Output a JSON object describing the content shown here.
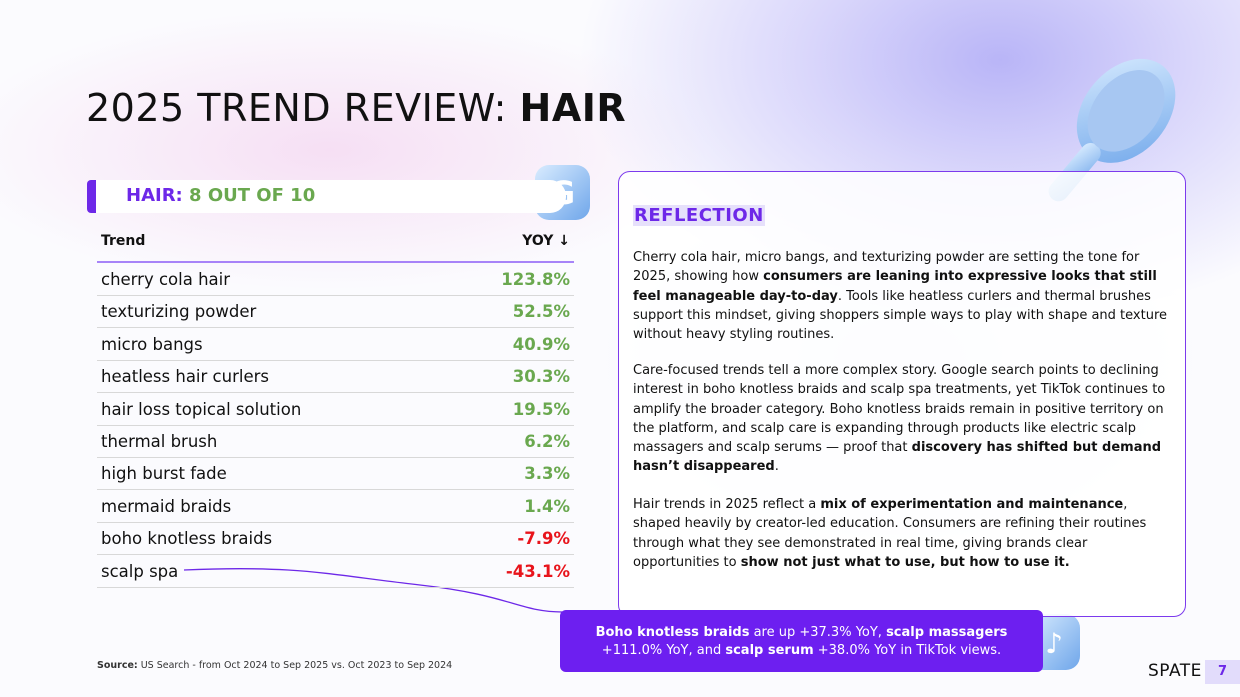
{
  "header": {
    "title": [
      {
        "text": "2025 TREND REVIEW: ",
        "bold": false
      },
      {
        "text": "HAIR",
        "bold": true
      }
    ]
  },
  "card": {
    "label": "HAIR:",
    "score": "8 OUT OF 10"
  },
  "table": {
    "columns": [
      "Trend",
      "YOY ↓"
    ],
    "rows": [
      [
        "cherry cola hair",
        "123.8%"
      ],
      [
        "texturizing powder",
        "52.5%"
      ],
      [
        "micro bangs",
        "40.9%"
      ],
      [
        "heatless hair curlers",
        "30.3%"
      ],
      [
        "hair loss topical solution",
        "19.5%"
      ],
      [
        "thermal brush",
        "6.2%"
      ],
      [
        "high burst fade",
        "3.3%"
      ],
      [
        "mermaid braids",
        "1.4%"
      ],
      [
        "boho knotless braids",
        "-7.9%"
      ],
      [
        "scalp spa",
        "-43.1%"
      ]
    ]
  },
  "reflection": {
    "heading": "REFLECTION",
    "paragraphs": [
      [
        {
          "text": "Cherry cola hair, micro bangs, and texturizing powder are setting the tone for 2025, showing how ",
          "bold": false
        },
        {
          "text": "consumers are leaning into expressive looks that still feel manageable day-to-day",
          "bold": true
        },
        {
          "text": ". Tools like heatless curlers and thermal brushes support this mindset, giving shoppers simple ways to play with shape and texture without heavy styling routines.",
          "bold": false
        }
      ],
      [
        {
          "text": "Care-focused trends tell a more complex story. Google search points to declining interest in boho knotless braids and scalp spa treatments, yet TikTok continues to amplify the broader category. Boho knotless braids remain in positive territory on the platform, and scalp care is expanding through products like electric scalp massagers and scalp serums — proof that ",
          "bold": false
        },
        {
          "text": "discovery has shifted but demand hasn’t disappeared",
          "bold": true
        },
        {
          "text": ".",
          "bold": false
        }
      ],
      [
        {
          "text": "Hair trends in 2025 reflect a ",
          "bold": false
        },
        {
          "text": "mix of experimentation and maintenance",
          "bold": true
        },
        {
          "text": ", shaped heavily by creator-led education. Consumers are refining their routines through what they see demonstrated in real time, giving brands clear opportunities to ",
          "bold": false
        },
        {
          "text": "show not just what to use, but how to use it.",
          "bold": true
        }
      ]
    ]
  },
  "callout": [
    {
      "text": "Boho knotless braids",
      "bold": true
    },
    {
      "text": " are up +37.3% YoY, ",
      "bold": false
    },
    {
      "text": "scalp massagers",
      "bold": true
    },
    {
      "text": " +111.0% YoY, and ",
      "bold": false
    },
    {
      "text": "scalp serum",
      "bold": true
    },
    {
      "text": " +38.0% YoY in TikTok views.",
      "bold": false
    }
  ],
  "source": [
    {
      "text": "Source:",
      "bold": true
    },
    {
      "text": " US Search - from Oct 2024 to Sep 2025 vs. Oct 2023 to Sep 2024",
      "bold": false
    }
  ],
  "footer": {
    "brand": "SPATE",
    "page": "7"
  }
}
